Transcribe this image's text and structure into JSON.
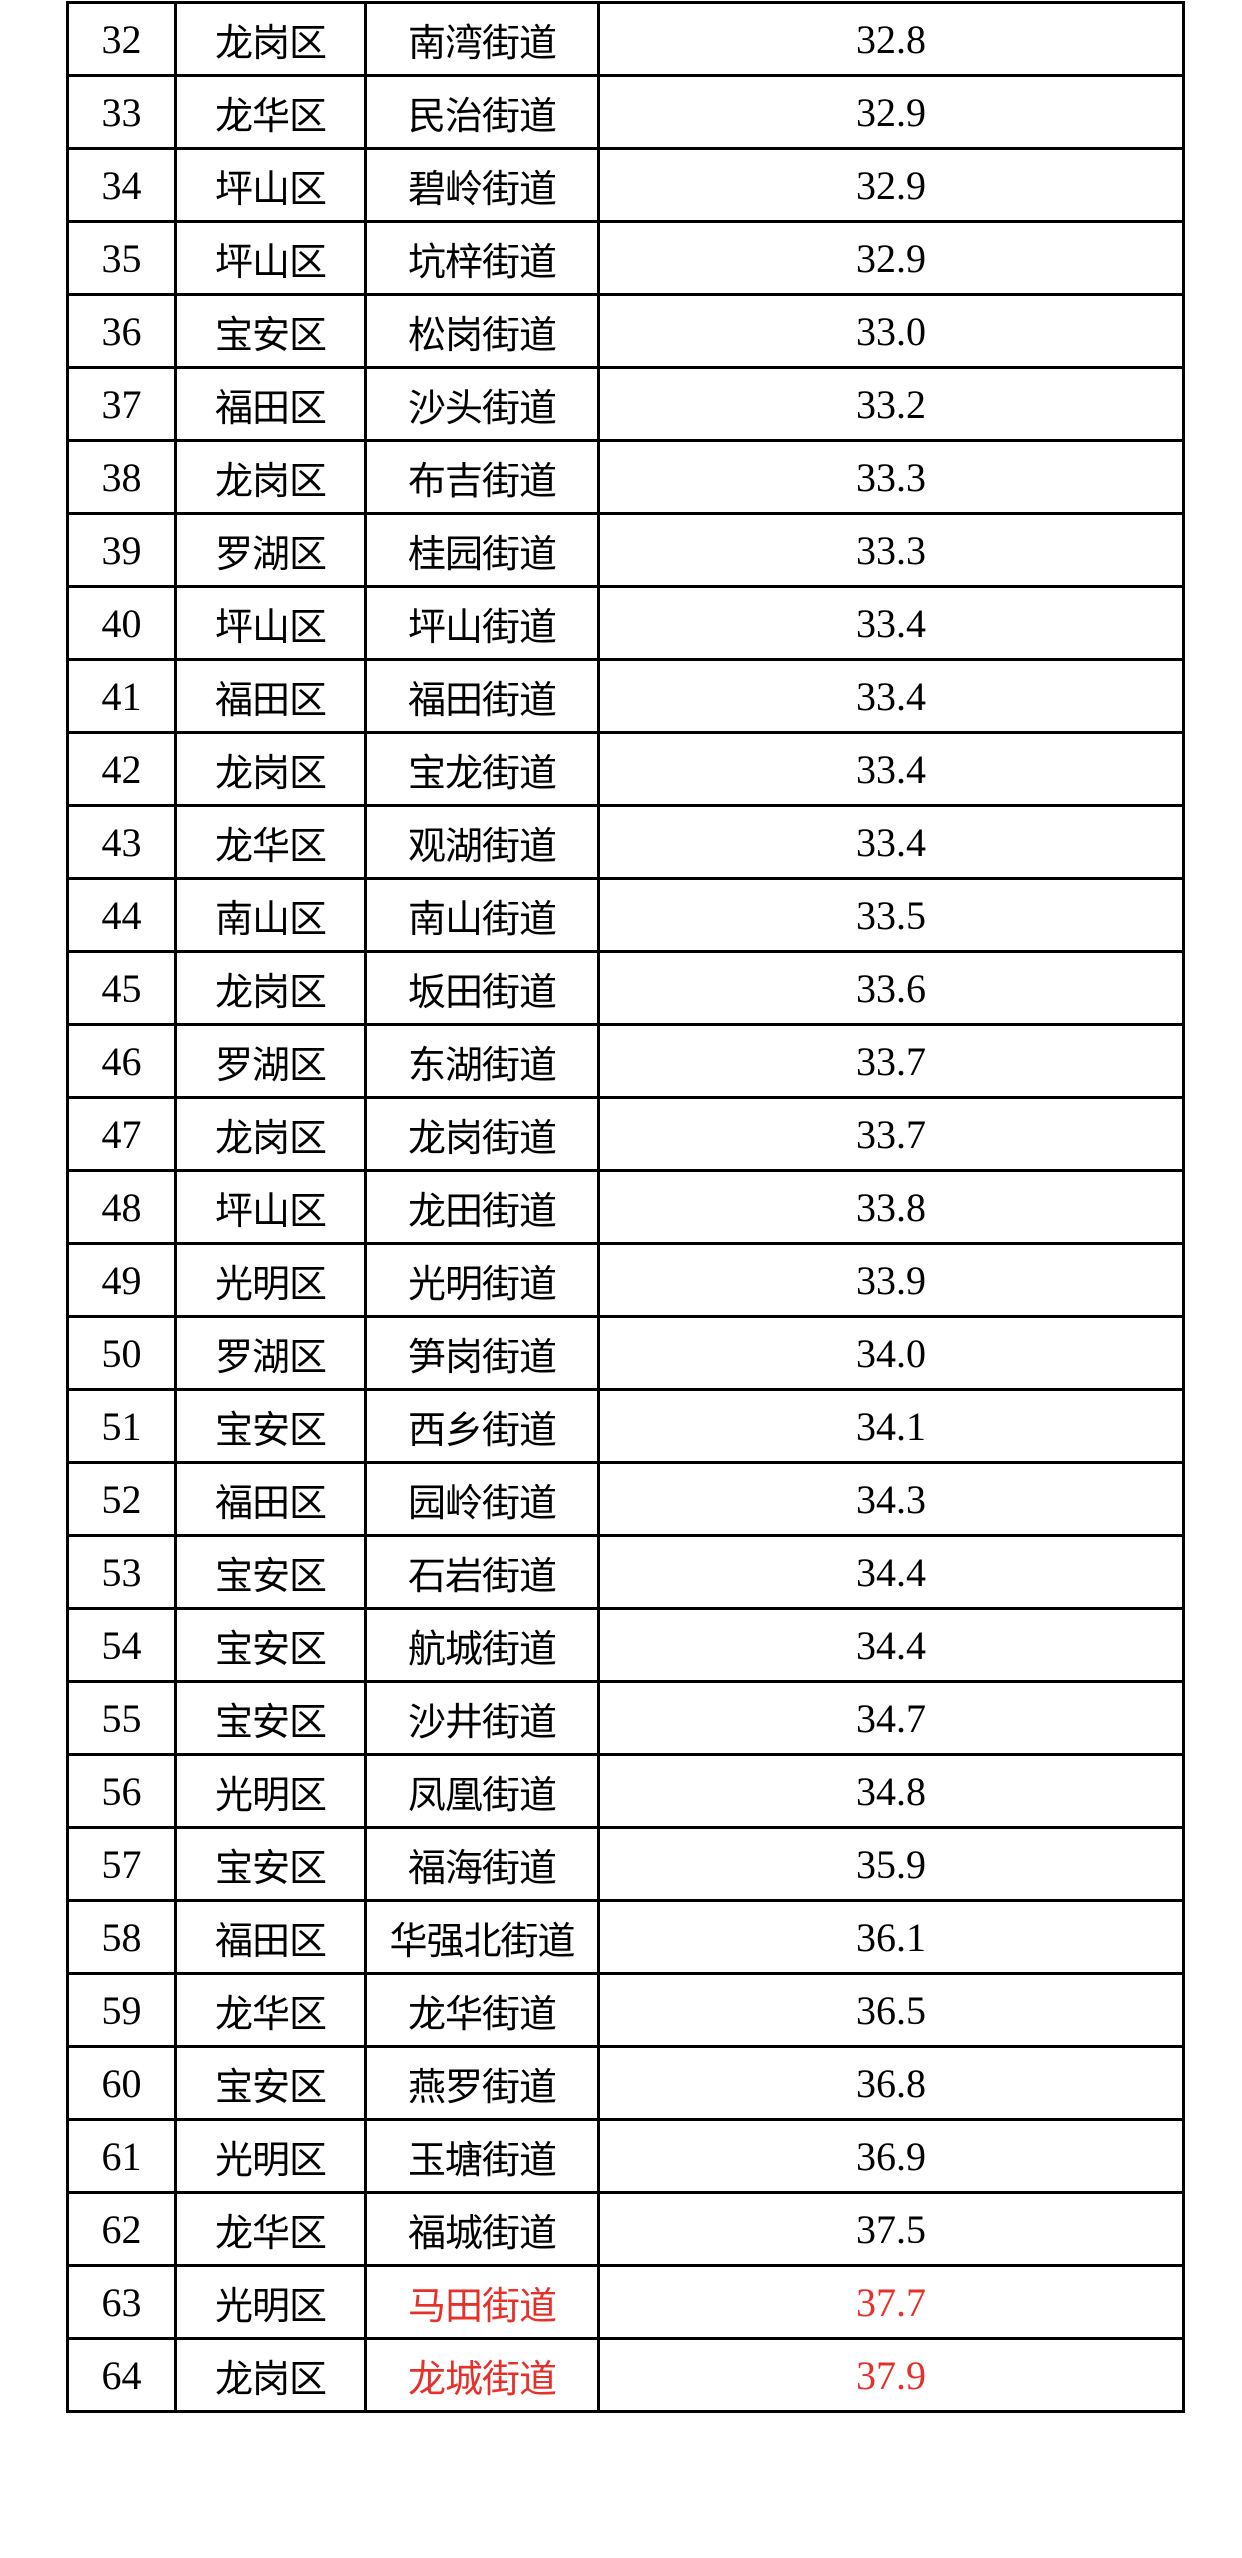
{
  "highlight_color": "#e8302a",
  "rows": [
    {
      "no": "32",
      "district": "龙岗区",
      "street": "南湾街道",
      "value": "32.8",
      "highlight": false
    },
    {
      "no": "33",
      "district": "龙华区",
      "street": "民治街道",
      "value": "32.9",
      "highlight": false
    },
    {
      "no": "34",
      "district": "坪山区",
      "street": "碧岭街道",
      "value": "32.9",
      "highlight": false
    },
    {
      "no": "35",
      "district": "坪山区",
      "street": "坑梓街道",
      "value": "32.9",
      "highlight": false
    },
    {
      "no": "36",
      "district": "宝安区",
      "street": "松岗街道",
      "value": "33.0",
      "highlight": false
    },
    {
      "no": "37",
      "district": "福田区",
      "street": "沙头街道",
      "value": "33.2",
      "highlight": false
    },
    {
      "no": "38",
      "district": "龙岗区",
      "street": "布吉街道",
      "value": "33.3",
      "highlight": false
    },
    {
      "no": "39",
      "district": "罗湖区",
      "street": "桂园街道",
      "value": "33.3",
      "highlight": false
    },
    {
      "no": "40",
      "district": "坪山区",
      "street": "坪山街道",
      "value": "33.4",
      "highlight": false
    },
    {
      "no": "41",
      "district": "福田区",
      "street": "福田街道",
      "value": "33.4",
      "highlight": false
    },
    {
      "no": "42",
      "district": "龙岗区",
      "street": "宝龙街道",
      "value": "33.4",
      "highlight": false
    },
    {
      "no": "43",
      "district": "龙华区",
      "street": "观湖街道",
      "value": "33.4",
      "highlight": false
    },
    {
      "no": "44",
      "district": "南山区",
      "street": "南山街道",
      "value": "33.5",
      "highlight": false
    },
    {
      "no": "45",
      "district": "龙岗区",
      "street": "坂田街道",
      "value": "33.6",
      "highlight": false
    },
    {
      "no": "46",
      "district": "罗湖区",
      "street": "东湖街道",
      "value": "33.7",
      "highlight": false
    },
    {
      "no": "47",
      "district": "龙岗区",
      "street": "龙岗街道",
      "value": "33.7",
      "highlight": false
    },
    {
      "no": "48",
      "district": "坪山区",
      "street": "龙田街道",
      "value": "33.8",
      "highlight": false
    },
    {
      "no": "49",
      "district": "光明区",
      "street": "光明街道",
      "value": "33.9",
      "highlight": false
    },
    {
      "no": "50",
      "district": "罗湖区",
      "street": "笋岗街道",
      "value": "34.0",
      "highlight": false
    },
    {
      "no": "51",
      "district": "宝安区",
      "street": "西乡街道",
      "value": "34.1",
      "highlight": false
    },
    {
      "no": "52",
      "district": "福田区",
      "street": "园岭街道",
      "value": "34.3",
      "highlight": false
    },
    {
      "no": "53",
      "district": "宝安区",
      "street": "石岩街道",
      "value": "34.4",
      "highlight": false
    },
    {
      "no": "54",
      "district": "宝安区",
      "street": "航城街道",
      "value": "34.4",
      "highlight": false
    },
    {
      "no": "55",
      "district": "宝安区",
      "street": "沙井街道",
      "value": "34.7",
      "highlight": false
    },
    {
      "no": "56",
      "district": "光明区",
      "street": "凤凰街道",
      "value": "34.8",
      "highlight": false
    },
    {
      "no": "57",
      "district": "宝安区",
      "street": "福海街道",
      "value": "35.9",
      "highlight": false
    },
    {
      "no": "58",
      "district": "福田区",
      "street": "华强北街道",
      "value": "36.1",
      "highlight": false
    },
    {
      "no": "59",
      "district": "龙华区",
      "street": "龙华街道",
      "value": "36.5",
      "highlight": false
    },
    {
      "no": "60",
      "district": "宝安区",
      "street": "燕罗街道",
      "value": "36.8",
      "highlight": false
    },
    {
      "no": "61",
      "district": "光明区",
      "street": "玉塘街道",
      "value": "36.9",
      "highlight": false
    },
    {
      "no": "62",
      "district": "龙华区",
      "street": "福城街道",
      "value": "37.5",
      "highlight": false
    },
    {
      "no": "63",
      "district": "光明区",
      "street": "马田街道",
      "value": "37.7",
      "highlight": true
    },
    {
      "no": "64",
      "district": "龙岗区",
      "street": "龙城街道",
      "value": "37.9",
      "highlight": true
    }
  ]
}
